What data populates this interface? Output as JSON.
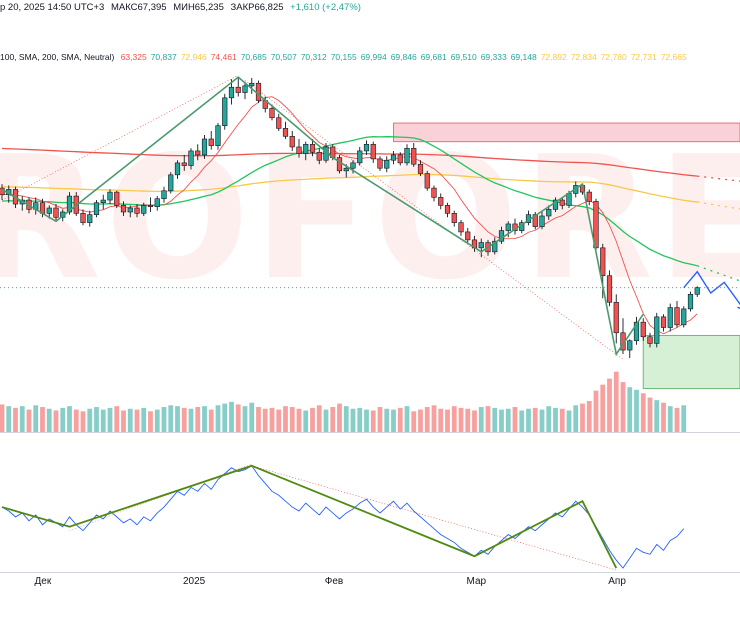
{
  "header": {
    "date_fragment": "р 20, 2025 14:50 UTC+3",
    "high": "МАКС67,395",
    "low": "МИН65,235",
    "close": "ЗАКР66,825",
    "change": "+1,610 (+2,47%)",
    "ma_label": "100, SMA, 200, SMA, Neutral)",
    "ma_values": [
      {
        "v": "63,325",
        "color": "#ef5350"
      },
      {
        "v": "70,837",
        "color": "#26a69a"
      },
      {
        "v": "72,946",
        "color": "#f7c948"
      },
      {
        "v": "74,461",
        "color": "#ef5350"
      },
      {
        "v": "70,685",
        "color": "#26a69a"
      },
      {
        "v": "70,507",
        "color": "#26a69a"
      },
      {
        "v": "70,312",
        "color": "#26a69a"
      },
      {
        "v": "70,155",
        "color": "#26a69a"
      },
      {
        "v": "69,994",
        "color": "#26a69a"
      },
      {
        "v": "69,846",
        "color": "#26a69a"
      },
      {
        "v": "69,681",
        "color": "#26a69a"
      },
      {
        "v": "69,510",
        "color": "#26a69a"
      },
      {
        "v": "69,333",
        "color": "#26a69a"
      },
      {
        "v": "69,148",
        "color": "#26a69a"
      },
      {
        "v": "72,892",
        "color": "#f7c948"
      },
      {
        "v": "72,834",
        "color": "#f7c948"
      },
      {
        "v": "72,780",
        "color": "#f7c948"
      },
      {
        "v": "72,731",
        "color": "#f7c948"
      },
      {
        "v": "72,665",
        "color": "#f7c948"
      }
    ]
  },
  "watermark": "ROFOREX.",
  "colors": {
    "up": "#26a69a",
    "down": "#ef5350",
    "sma_short": "#ef5350",
    "sma_mid": "#22c55e",
    "sma_long": "#f7c948",
    "zigzag": "#4a9a6e",
    "oscillator": "#2962ff",
    "osc_zigzag": "#4f8a10",
    "forecast": "#2962ff",
    "resistance_zone": "#f8c9cf",
    "support_zone": "#c8ebc8"
  },
  "x_axis_labels": [
    "Дек",
    "2025",
    "Фев",
    "Мар",
    "Апр"
  ],
  "chart_data": {
    "type": "candlestick",
    "title": "",
    "xlabel": "",
    "ylabel": "",
    "x_axis": {
      "type": "date",
      "ticks": [
        "Дек",
        "2025",
        "Фев",
        "Мар",
        "Апр"
      ],
      "tick_index": [
        6,
        28,
        49,
        70,
        91
      ]
    },
    "grid": false,
    "price_range": [
      57.8,
      76.5
    ],
    "candles": [
      [
        66.1,
        66.4,
        65.2,
        65.6
      ],
      [
        65.6,
        66.3,
        65.0,
        66.0
      ],
      [
        66.0,
        66.2,
        64.6,
        64.9
      ],
      [
        64.9,
        65.5,
        64.4,
        65.2
      ],
      [
        65.2,
        65.4,
        64.2,
        64.5
      ],
      [
        64.5,
        65.4,
        64.1,
        65.0
      ],
      [
        65.0,
        65.3,
        63.9,
        64.2
      ],
      [
        64.2,
        64.8,
        63.8,
        64.6
      ],
      [
        64.6,
        64.9,
        63.7,
        63.9
      ],
      [
        63.9,
        64.5,
        63.6,
        64.3
      ],
      [
        64.3,
        65.8,
        64.1,
        65.5
      ],
      [
        65.5,
        65.8,
        64.0,
        64.2
      ],
      [
        64.2,
        64.5,
        63.3,
        63.5
      ],
      [
        63.5,
        64.4,
        63.2,
        64.1
      ],
      [
        64.1,
        65.2,
        63.9,
        65.0
      ],
      [
        65.0,
        65.6,
        64.5,
        65.2
      ],
      [
        65.2,
        66.0,
        64.9,
        65.8
      ],
      [
        65.8,
        65.9,
        64.6,
        64.8
      ],
      [
        64.8,
        65.1,
        64.0,
        64.3
      ],
      [
        64.3,
        64.8,
        63.9,
        64.6
      ],
      [
        64.6,
        64.9,
        63.9,
        64.2
      ],
      [
        64.2,
        65.0,
        64.0,
        64.8
      ],
      [
        64.8,
        65.4,
        64.3,
        64.7
      ],
      [
        64.7,
        65.5,
        64.4,
        65.3
      ],
      [
        65.3,
        66.2,
        65.0,
        65.9
      ],
      [
        65.9,
        67.3,
        65.7,
        67.1
      ],
      [
        67.1,
        68.2,
        66.8,
        68.0
      ],
      [
        68.0,
        68.6,
        67.4,
        67.8
      ],
      [
        67.8,
        69.1,
        67.5,
        68.9
      ],
      [
        68.9,
        69.4,
        68.2,
        68.6
      ],
      [
        68.6,
        70.1,
        68.3,
        69.8
      ],
      [
        69.8,
        70.4,
        69.0,
        69.3
      ],
      [
        69.3,
        71.0,
        69.0,
        70.8
      ],
      [
        70.8,
        73.2,
        70.5,
        72.9
      ],
      [
        72.9,
        74.3,
        72.4,
        73.7
      ],
      [
        73.7,
        74.46,
        73.0,
        73.3
      ],
      [
        73.3,
        74.1,
        72.8,
        73.8
      ],
      [
        73.8,
        74.4,
        73.2,
        74.0
      ],
      [
        74.0,
        74.2,
        72.5,
        72.7
      ],
      [
        72.7,
        73.0,
        71.8,
        72.1
      ],
      [
        72.1,
        72.4,
        71.2,
        71.4
      ],
      [
        71.4,
        71.7,
        70.4,
        70.6
      ],
      [
        70.6,
        71.1,
        69.8,
        70.0
      ],
      [
        70.0,
        70.4,
        68.9,
        69.2
      ],
      [
        69.2,
        69.8,
        68.4,
        68.7
      ],
      [
        68.7,
        69.6,
        68.2,
        69.4
      ],
      [
        69.4,
        69.8,
        68.5,
        68.8
      ],
      [
        68.8,
        69.1,
        67.9,
        68.2
      ],
      [
        68.2,
        69.5,
        68.0,
        69.2
      ],
      [
        69.2,
        69.4,
        68.2,
        68.4
      ],
      [
        68.4,
        68.6,
        67.2,
        67.4
      ],
      [
        67.4,
        67.9,
        66.9,
        67.6
      ],
      [
        67.6,
        68.2,
        67.2,
        68.0
      ],
      [
        68.0,
        69.2,
        67.8,
        68.9
      ],
      [
        68.9,
        69.7,
        68.6,
        69.4
      ],
      [
        69.4,
        69.6,
        68.0,
        68.3
      ],
      [
        68.3,
        68.5,
        67.4,
        67.6
      ],
      [
        67.6,
        68.5,
        67.3,
        68.2
      ],
      [
        68.2,
        68.9,
        67.9,
        68.6
      ],
      [
        68.6,
        68.8,
        67.8,
        68.0
      ],
      [
        68.0,
        69.4,
        67.8,
        69.1
      ],
      [
        69.1,
        69.5,
        67.7,
        67.9
      ],
      [
        67.9,
        68.2,
        67.0,
        67.2
      ],
      [
        67.2,
        67.4,
        65.9,
        66.1
      ],
      [
        66.1,
        66.3,
        65.1,
        65.4
      ],
      [
        65.4,
        65.7,
        64.5,
        64.8
      ],
      [
        64.8,
        65.0,
        63.9,
        64.2
      ],
      [
        64.2,
        64.4,
        63.2,
        63.5
      ],
      [
        63.5,
        63.7,
        62.5,
        62.8
      ],
      [
        62.8,
        63.1,
        61.9,
        62.2
      ],
      [
        62.2,
        62.5,
        61.3,
        61.6
      ],
      [
        61.6,
        62.3,
        60.9,
        62.0
      ],
      [
        62.0,
        62.2,
        61.0,
        61.3
      ],
      [
        61.3,
        62.4,
        61.1,
        62.1
      ],
      [
        62.1,
        63.2,
        61.9,
        62.9
      ],
      [
        62.9,
        63.6,
        62.4,
        63.4
      ],
      [
        63.4,
        63.8,
        62.6,
        62.9
      ],
      [
        62.9,
        63.7,
        62.7,
        63.5
      ],
      [
        63.5,
        64.4,
        63.3,
        64.1
      ],
      [
        64.1,
        64.3,
        63.0,
        63.2
      ],
      [
        63.2,
        64.3,
        63.0,
        64.0
      ],
      [
        64.0,
        64.8,
        63.7,
        64.5
      ],
      [
        64.5,
        65.4,
        64.3,
        65.2
      ],
      [
        65.2,
        65.4,
        64.5,
        64.8
      ],
      [
        64.8,
        65.9,
        64.6,
        65.7
      ],
      [
        65.7,
        66.6,
        65.4,
        66.3
      ],
      [
        66.3,
        66.4,
        65.6,
        65.8
      ],
      [
        65.8,
        66.0,
        64.8,
        65.1
      ],
      [
        65.1,
        65.3,
        61.2,
        61.6
      ],
      [
        61.6,
        61.9,
        57.8,
        59.5
      ],
      [
        59.5,
        59.9,
        57.2,
        57.5
      ],
      [
        57.5,
        58.1,
        54.4,
        55.2
      ],
      [
        55.2,
        56.3,
        53.6,
        53.9
      ],
      [
        53.9,
        54.7,
        53.3,
        54.6
      ],
      [
        54.6,
        56.4,
        54.3,
        56.0
      ],
      [
        56.0,
        56.3,
        54.6,
        54.9
      ],
      [
        54.9,
        55.2,
        54.1,
        54.4
      ],
      [
        54.4,
        56.7,
        54.1,
        56.4
      ],
      [
        56.4,
        56.6,
        55.3,
        55.6
      ],
      [
        55.6,
        57.4,
        55.3,
        57.1
      ],
      [
        57.1,
        57.6,
        55.6,
        55.8
      ],
      [
        55.8,
        57.2,
        55.6,
        57.0
      ],
      [
        57.0,
        58.3,
        56.8,
        58.1
      ],
      [
        58.1,
        58.7,
        57.9,
        58.6
      ]
    ],
    "candle_order": "open, high, low, close",
    "volume": [
      32,
      30,
      28,
      30,
      26,
      31,
      29,
      27,
      25,
      28,
      30,
      26,
      24,
      27,
      29,
      26,
      28,
      30,
      25,
      27,
      26,
      28,
      24,
      26,
      29,
      31,
      30,
      28,
      27,
      29,
      30,
      26,
      31,
      33,
      35,
      32,
      30,
      34,
      29,
      27,
      28,
      26,
      30,
      29,
      27,
      25,
      28,
      31,
      26,
      29,
      33,
      30,
      27,
      28,
      26,
      25,
      29,
      27,
      26,
      28,
      30,
      24,
      26,
      29,
      31,
      27,
      26,
      30,
      28,
      27,
      25,
      29,
      30,
      28,
      26,
      27,
      29,
      25,
      27,
      28,
      26,
      30,
      28,
      27,
      25,
      31,
      33,
      36,
      48,
      55,
      62,
      70,
      58,
      52,
      49,
      45,
      40,
      37,
      34,
      30,
      28,
      31
    ],
    "resistance_zone": [
      69.6,
      71.0
    ],
    "support_zone": [
      51.0,
      55.0
    ],
    "zigzag_points": [
      [
        0,
        66.0
      ],
      [
        8,
        63.6
      ],
      [
        35,
        74.46
      ],
      [
        49,
        68.4
      ],
      [
        71,
        61.3
      ],
      [
        86,
        66.4
      ],
      [
        91,
        53.6
      ],
      [
        95,
        56.6
      ]
    ],
    "forecast_path": [
      [
        101,
        58.6
      ],
      [
        103,
        59.8
      ],
      [
        105,
        58.2
      ],
      [
        107,
        59.0
      ],
      [
        110,
        56.9
      ]
    ],
    "oscillator": {
      "range": [
        20,
        80
      ],
      "values": [
        52,
        50,
        47,
        49,
        45,
        48,
        43,
        46,
        44,
        42,
        47,
        43,
        40,
        44,
        48,
        46,
        50,
        47,
        44,
        46,
        43,
        47,
        45,
        49,
        52,
        56,
        60,
        58,
        62,
        60,
        64,
        61,
        66,
        69,
        72,
        70,
        71,
        73,
        68,
        64,
        60,
        58,
        55,
        52,
        50,
        54,
        51,
        48,
        52,
        49,
        46,
        49,
        51,
        54,
        56,
        52,
        49,
        52,
        55,
        51,
        54,
        50,
        47,
        44,
        41,
        38,
        36,
        34,
        31,
        29,
        27,
        30,
        28,
        32,
        35,
        38,
        36,
        39,
        42,
        40,
        43,
        46,
        49,
        47,
        51,
        55,
        52,
        48,
        42,
        36,
        30,
        25,
        21,
        26,
        31,
        29,
        28,
        33,
        30,
        35,
        37,
        41
      ],
      "zigzag_points": [
        [
          0,
          52
        ],
        [
          10,
          42
        ],
        [
          37,
          73
        ],
        [
          70,
          27
        ],
        [
          86,
          55
        ],
        [
          91,
          21
        ]
      ]
    }
  }
}
